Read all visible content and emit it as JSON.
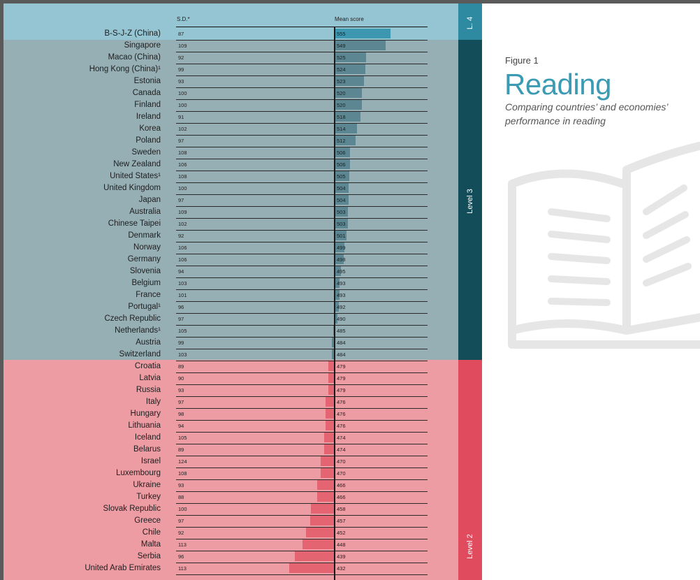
{
  "figure": {
    "label": "Figure 1",
    "title": "Reading",
    "subtitle": "Comparing countries’ and economies’ performance in reading"
  },
  "icons": {
    "book": "open-book-icon"
  },
  "colors": {
    "level4_band": "#95c4d3",
    "level4_strip": "#2e8aa1",
    "level4_bar": "#3d97b0",
    "level3_band": "#96afb5",
    "level3_strip": "#134d59",
    "level3_bar": "#5c8792",
    "level2_band": "#ee9ca3",
    "level2_strip": "#e04c5e",
    "level2_bar": "#e56472",
    "title": "#3a9bb3"
  },
  "chart_data": {
    "type": "bar",
    "headers": {
      "sd": "S.D.*",
      "mean": "Mean score"
    },
    "levels": [
      {
        "label": "L. 4",
        "key": "level4"
      },
      {
        "label": "Level 3",
        "key": "level3"
      },
      {
        "label": "Level 2",
        "key": "level2"
      }
    ],
    "reference_line": 487,
    "rows": [
      {
        "name": "B-S-J-Z (China)",
        "sd": "87",
        "mean": 555,
        "level": "level4"
      },
      {
        "name": "Singapore",
        "sd": "109",
        "mean": 549,
        "level": "level3"
      },
      {
        "name": "Macao (China)",
        "sd": "92",
        "mean": 525,
        "level": "level3"
      },
      {
        "name": "Hong Kong (China)¹",
        "sd": "99",
        "mean": 524,
        "level": "level3"
      },
      {
        "name": "Estonia",
        "sd": "93",
        "mean": 523,
        "level": "level3"
      },
      {
        "name": "Canada",
        "sd": "100",
        "mean": 520,
        "level": "level3"
      },
      {
        "name": "Finland",
        "sd": "100",
        "mean": 520,
        "level": "level3"
      },
      {
        "name": "Ireland",
        "sd": "91",
        "mean": 518,
        "level": "level3"
      },
      {
        "name": "Korea",
        "sd": "102",
        "mean": 514,
        "level": "level3"
      },
      {
        "name": "Poland",
        "sd": "97",
        "mean": 512,
        "level": "level3"
      },
      {
        "name": "Sweden",
        "sd": "108",
        "mean": 506,
        "level": "level3"
      },
      {
        "name": "New Zealand",
        "sd": "106",
        "mean": 506,
        "level": "level3"
      },
      {
        "name": "United States¹",
        "sd": "108",
        "mean": 505,
        "level": "level3"
      },
      {
        "name": "United Kingdom",
        "sd": "100",
        "mean": 504,
        "level": "level3"
      },
      {
        "name": "Japan",
        "sd": "97",
        "mean": 504,
        "level": "level3"
      },
      {
        "name": "Australia",
        "sd": "109",
        "mean": 503,
        "level": "level3"
      },
      {
        "name": "Chinese Taipei",
        "sd": "102",
        "mean": 503,
        "level": "level3"
      },
      {
        "name": "Denmark",
        "sd": "92",
        "mean": 501,
        "level": "level3"
      },
      {
        "name": "Norway",
        "sd": "106",
        "mean": 499,
        "level": "level3"
      },
      {
        "name": "Germany",
        "sd": "106",
        "mean": 498,
        "level": "level3"
      },
      {
        "name": "Slovenia",
        "sd": "94",
        "mean": 495,
        "level": "level3"
      },
      {
        "name": "Belgium",
        "sd": "103",
        "mean": 493,
        "level": "level3"
      },
      {
        "name": "France",
        "sd": "101",
        "mean": 493,
        "level": "level3"
      },
      {
        "name": "Portugal¹",
        "sd": "96",
        "mean": 492,
        "level": "level3"
      },
      {
        "name": "Czech Republic",
        "sd": "97",
        "mean": 490,
        "level": "level3"
      },
      {
        "name": "Netherlands¹",
        "sd": "105",
        "mean": 485,
        "level": "level3"
      },
      {
        "name": "Austria",
        "sd": "99",
        "mean": 484,
        "level": "level3"
      },
      {
        "name": "Switzerland",
        "sd": "103",
        "mean": 484,
        "level": "level3"
      },
      {
        "name": "Croatia",
        "sd": "89",
        "mean": 479,
        "level": "level2"
      },
      {
        "name": "Latvia",
        "sd": "90",
        "mean": 479,
        "level": "level2"
      },
      {
        "name": "Russia",
        "sd": "93",
        "mean": 479,
        "level": "level2"
      },
      {
        "name": "Italy",
        "sd": "97",
        "mean": 476,
        "level": "level2"
      },
      {
        "name": "Hungary",
        "sd": "98",
        "mean": 476,
        "level": "level2"
      },
      {
        "name": "Lithuania",
        "sd": "94",
        "mean": 476,
        "level": "level2"
      },
      {
        "name": "Iceland",
        "sd": "105",
        "mean": 474,
        "level": "level2"
      },
      {
        "name": "Belarus",
        "sd": "89",
        "mean": 474,
        "level": "level2"
      },
      {
        "name": "Israel",
        "sd": "124",
        "mean": 470,
        "level": "level2"
      },
      {
        "name": "Luxembourg",
        "sd": "108",
        "mean": 470,
        "level": "level2"
      },
      {
        "name": "Ukraine",
        "sd": "93",
        "mean": 466,
        "level": "level2"
      },
      {
        "name": "Turkey",
        "sd": "88",
        "mean": 466,
        "level": "level2"
      },
      {
        "name": "Slovak Republic",
        "sd": "100",
        "mean": 458,
        "level": "level2"
      },
      {
        "name": "Greece",
        "sd": "97",
        "mean": 457,
        "level": "level2"
      },
      {
        "name": "Chile",
        "sd": "92",
        "mean": 452,
        "level": "level2"
      },
      {
        "name": "Malta",
        "sd": "113",
        "mean": 448,
        "level": "level2"
      },
      {
        "name": "Serbia",
        "sd": "96",
        "mean": 439,
        "level": "level2"
      },
      {
        "name": "United Arab Emirates",
        "sd": "113",
        "mean": 432,
        "level": "level2"
      }
    ]
  }
}
